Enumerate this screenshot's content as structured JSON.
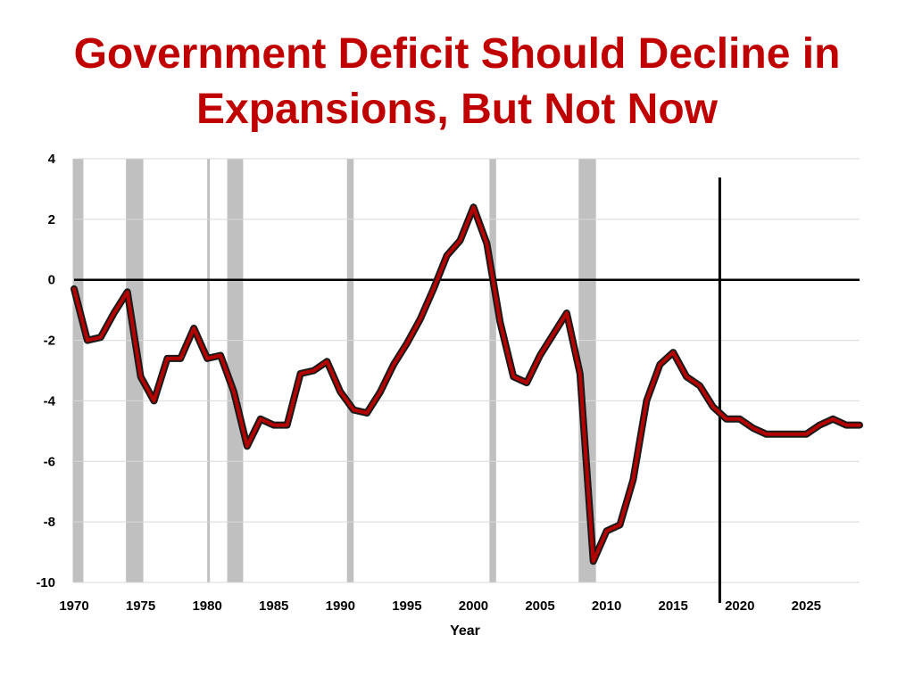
{
  "chart_data": {
    "type": "line",
    "title": "Government Deficit Should Decline in Expansions, But Not Now",
    "xlabel": "Year",
    "ylabel": "",
    "xlim": [
      1970,
      2029
    ],
    "ylim": [
      -10,
      4
    ],
    "y_ticks": [
      4,
      2,
      0,
      -2,
      -4,
      -6,
      -8,
      -10
    ],
    "x_ticks": [
      1970,
      1975,
      1980,
      1985,
      1990,
      1995,
      2000,
      2005,
      2010,
      2015,
      2020,
      2025
    ],
    "grid": true,
    "line_color": "#b30000",
    "outline_color": "#1a1a1a",
    "recession_color": "#c0c0c0",
    "zero_line": true,
    "projection_marker_year": 2018.5,
    "recessions": [
      [
        1969.9,
        1970.7
      ],
      [
        1973.9,
        1975.2
      ],
      [
        1980.0,
        1980.2
      ],
      [
        1981.5,
        1982.7
      ],
      [
        1990.5,
        1991.0
      ],
      [
        2001.2,
        2001.7
      ],
      [
        2007.9,
        2009.2
      ]
    ],
    "series": [
      {
        "x": [
          1970,
          1971,
          1972,
          1973,
          1974,
          1975,
          1976,
          1977,
          1978,
          1979,
          1980,
          1981,
          1982,
          1983,
          1984,
          1985,
          1986,
          1987,
          1988,
          1989,
          1990,
          1991,
          1992,
          1993,
          1994,
          1995,
          1996,
          1997,
          1998,
          1999,
          2000,
          2001,
          2002,
          2003,
          2004,
          2005,
          2006,
          2007,
          2008,
          2009,
          2010,
          2011,
          2012,
          2013,
          2014,
          2015,
          2016,
          2017,
          2018,
          2019,
          2020,
          2021,
          2022,
          2023,
          2024,
          2025,
          2026,
          2027,
          2028,
          2029
        ],
        "values": [
          -0.3,
          -2.0,
          -1.9,
          -1.1,
          -0.4,
          -3.2,
          -4.0,
          -2.6,
          -2.6,
          -1.6,
          -2.6,
          -2.5,
          -3.7,
          -5.5,
          -4.6,
          -4.8,
          -4.8,
          -3.1,
          -3.0,
          -2.7,
          -3.7,
          -4.3,
          -4.4,
          -3.7,
          -2.8,
          -2.1,
          -1.3,
          -0.3,
          0.8,
          1.3,
          2.4,
          1.2,
          -1.4,
          -3.2,
          -3.4,
          -2.5,
          -1.8,
          -1.1,
          -3.1,
          -9.3,
          -8.3,
          -8.1,
          -6.6,
          -4.0,
          -2.8,
          -2.4,
          -3.2,
          -3.5,
          -4.2,
          -4.6,
          -4.6,
          -4.9,
          -5.1,
          -5.1,
          -5.1,
          -5.1,
          -4.8,
          -4.6,
          -4.8,
          -4.8
        ]
      }
    ]
  }
}
